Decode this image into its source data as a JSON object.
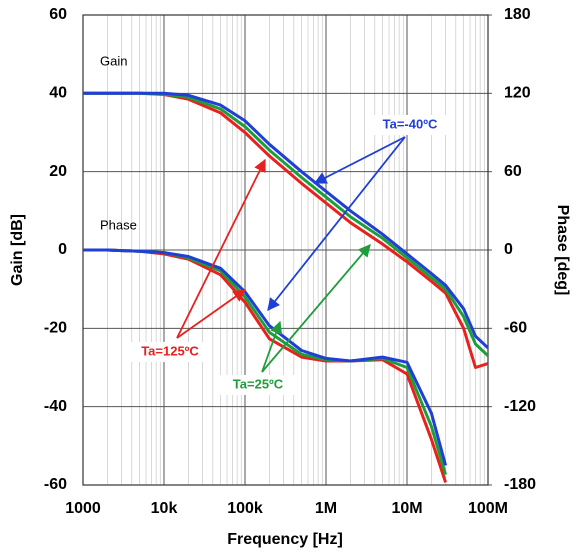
{
  "chart_data": {
    "type": "line",
    "xlabel": "Frequency [Hz]",
    "ylabel": "Gain [dB]",
    "y2label": "Phase [deg]",
    "annotations": [
      "Gain",
      "Phase"
    ],
    "xscale": "log",
    "grid": true,
    "xlim": [
      1000,
      100000000
    ],
    "xticks": [
      1000,
      {
        "value": 10000,
        "label": "10k"
      },
      {
        "value": 100000,
        "label": "100k"
      },
      {
        "value": 1000000,
        "label": "1M"
      },
      {
        "value": 10000000,
        "label": "10M"
      },
      {
        "value": 100000000,
        "label": "100M"
      }
    ],
    "ylim": [
      -60,
      60
    ],
    "yticks": [
      -60,
      -40,
      -20,
      0,
      20,
      40,
      60
    ],
    "y2lim": [
      -180,
      180
    ],
    "y2ticks": [
      -180,
      -120,
      -60,
      0,
      60,
      120,
      180
    ],
    "x": [
      1000,
      2000,
      5000,
      10000,
      20000,
      50000,
      100000,
      200000,
      500000,
      1000000,
      2000000,
      5000000,
      10000000,
      20000000,
      30000000,
      50000000,
      70000000,
      100000000
    ],
    "series": [
      {
        "name": "Ta=125ºC",
        "color": "#e8211f",
        "values": [
          40,
          40,
          40,
          39.7,
          38.5,
          35,
          30,
          24,
          17,
          12,
          7,
          1.5,
          -3,
          -8,
          -11,
          -20,
          -30,
          -29
        ]
      },
      {
        "name": "Ta=25ºC",
        "color": "#1e9e3a",
        "values": [
          40,
          40,
          40,
          39.8,
          39,
          36,
          31.5,
          25.5,
          18.5,
          13.5,
          8.5,
          3,
          -2,
          -7,
          -10,
          -17,
          -24,
          -27
        ]
      },
      {
        "name": "Ta=-40ºC",
        "color": "#1f3fd6",
        "values": [
          40,
          40,
          40,
          40,
          39.5,
          37,
          33,
          27,
          20,
          15,
          10,
          4,
          -1,
          -6,
          -9,
          -15,
          -22,
          -25
        ]
      },
      {
        "color": "#e8211f",
        "axis": "y2",
        "values": [
          0,
          0,
          -1,
          -3,
          -7,
          -19,
          -40,
          -68,
          -82,
          -85,
          -85,
          -84,
          -95,
          -145,
          -178,
          null,
          null,
          null
        ]
      },
      {
        "color": "#1e9e3a",
        "axis": "y2",
        "values": [
          0,
          0,
          -1,
          -2,
          -6,
          -16,
          -36,
          -63,
          -80,
          -84,
          -85,
          -83,
          -90,
          -135,
          -172,
          null,
          null,
          null
        ]
      },
      {
        "color": "#1f3fd6",
        "axis": "y2",
        "values": [
          0,
          0,
          -1,
          -2,
          -5,
          -14,
          -32,
          -58,
          -77,
          -83,
          -85,
          -82,
          -86,
          -125,
          -165,
          null,
          null,
          null
        ]
      }
    ]
  }
}
